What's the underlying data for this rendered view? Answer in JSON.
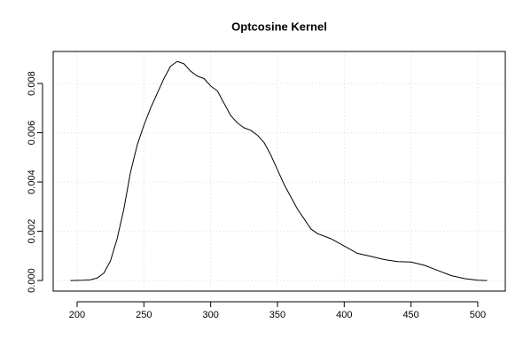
{
  "chart_data": {
    "type": "line",
    "title": "Optcosine Kernel",
    "color": "#000000",
    "grid": true,
    "x": [
      195,
      205,
      210,
      215,
      220,
      225,
      230,
      235,
      240,
      245,
      250,
      255,
      260,
      265,
      270,
      275,
      280,
      285,
      290,
      295,
      300,
      305,
      310,
      315,
      320,
      325,
      330,
      335,
      340,
      345,
      350,
      355,
      360,
      365,
      370,
      375,
      380,
      390,
      400,
      410,
      420,
      430,
      440,
      450,
      460,
      470,
      480,
      490,
      500,
      507
    ],
    "values": [
      0,
      1e-05,
      3e-05,
      0.0001,
      0.0003,
      0.0008,
      0.0017,
      0.0029,
      0.0044,
      0.0055,
      0.0063,
      0.007,
      0.0076,
      0.0082,
      0.0087,
      0.0089,
      0.0088,
      0.0085,
      0.0083,
      0.0082,
      0.0079,
      0.0077,
      0.0072,
      0.0067,
      0.0064,
      0.0062,
      0.0061,
      0.0059,
      0.0056,
      0.0051,
      0.0045,
      0.0039,
      0.0034,
      0.0029,
      0.0025,
      0.0021,
      0.0019,
      0.0017,
      0.0014,
      0.0011,
      0.00098,
      0.00085,
      0.00077,
      0.00075,
      0.00062,
      0.00041,
      0.0002,
      8e-05,
      1e-05,
      0
    ],
    "xlim": [
      182.1,
      520.6
    ],
    "ylim": [
      -0.00043,
      0.0093
    ],
    "xticks": [
      200,
      250,
      300,
      350,
      400,
      450,
      500
    ],
    "yticks": [
      {
        "value": 0,
        "label": "0.000"
      },
      0.002,
      0.004,
      0.006,
      0.008
    ]
  }
}
